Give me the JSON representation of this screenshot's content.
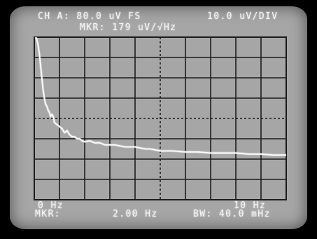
{
  "header": {
    "channel": "CH A: 80.0 uV FS",
    "scale": "10.0 uV/DIV",
    "marker": "MKR: 179 uV/√Hz"
  },
  "footer": {
    "start_freq": "0 Hz",
    "stop_freq": "10 Hz",
    "marker_label": "MKR:",
    "marker_freq": "2.00 Hz",
    "bandwidth": "BW: 40.0 mHz"
  },
  "chart_data": {
    "type": "line",
    "xlabel": "",
    "ylabel": "",
    "xlim": [
      0,
      10
    ],
    "ylim": [
      0,
      80
    ],
    "grid": true,
    "x": [
      0.05,
      0.1,
      0.15,
      0.2,
      0.25,
      0.3,
      0.35,
      0.4,
      0.45,
      0.5,
      0.55,
      0.6,
      0.65,
      0.7,
      0.75,
      0.8,
      0.9,
      1.0,
      1.1,
      1.2,
      1.3,
      1.4,
      1.5,
      1.6,
      1.7,
      1.8,
      1.9,
      2.0,
      2.2,
      2.4,
      2.6,
      2.8,
      3.0,
      3.2,
      3.4,
      3.6,
      3.8,
      4.0,
      4.2,
      4.4,
      4.6,
      4.8,
      5.0,
      5.5,
      6.0,
      6.5,
      7.0,
      7.5,
      8.0,
      8.5,
      9.0,
      9.5,
      10.0
    ],
    "values": [
      80,
      79,
      76,
      72,
      66,
      60,
      54,
      50,
      47,
      46,
      44,
      43,
      41,
      42,
      41,
      38,
      37,
      36,
      35,
      33,
      34,
      32,
      31,
      31,
      30,
      30,
      29,
      28.5,
      29,
      28,
      28,
      27,
      27,
      27,
      26.5,
      26,
      26,
      26,
      25.5,
      25,
      25,
      24.5,
      24,
      24,
      23.5,
      23.5,
      23,
      23,
      23,
      22.5,
      22.5,
      22,
      22
    ]
  }
}
